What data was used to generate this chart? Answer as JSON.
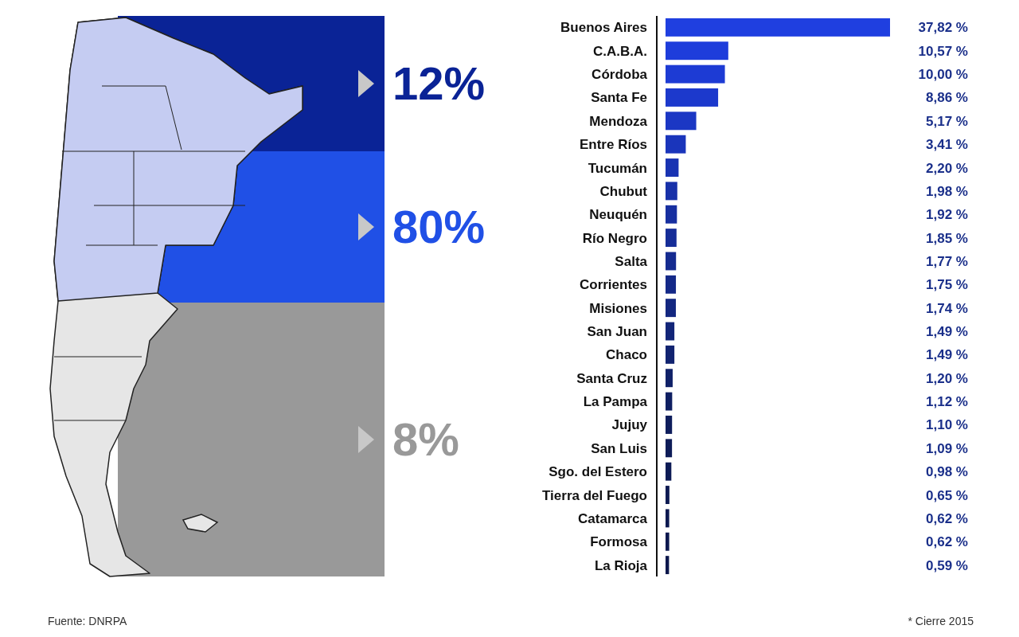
{
  "chart_data": [
    {
      "type": "other",
      "categories": [
        null,
        null,
        null
      ],
      "values": [
        12,
        80,
        8
      ],
      "colors": [
        "#0a2396",
        "#2050e6",
        "#999999"
      ],
      "value_labels": [
        "12%",
        "80%",
        "8%"
      ]
    },
    {
      "type": "bar",
      "orientation": "horizontal",
      "categories": [
        "Buenos Aires",
        "C.A.B.A.",
        "Córdoba",
        "Santa Fe",
        "Mendoza",
        "Entre Ríos",
        "Tucumán",
        "Chubut",
        "Neuquén",
        "Río Negro",
        "Salta",
        "Corrientes",
        "Misiones",
        "San Juan",
        "Chaco",
        "Santa Cruz",
        "La Pampa",
        "Jujuy",
        "San Luis",
        "Sgo. del Estero",
        "Tierra del Fuego",
        "Catamarca",
        "Formosa",
        "La Rioja"
      ],
      "values": [
        37.82,
        10.57,
        10.0,
        8.86,
        5.17,
        3.41,
        2.2,
        1.98,
        1.92,
        1.85,
        1.77,
        1.75,
        1.74,
        1.49,
        1.49,
        1.2,
        1.12,
        1.1,
        1.09,
        0.98,
        0.65,
        0.62,
        0.62,
        0.59
      ],
      "value_labels": [
        "37,82 %",
        "10,57 %",
        "10,00 %",
        "8,86 %",
        "5,17 %",
        "3,41 %",
        "2,20 %",
        "1,98 %",
        "1,92 %",
        "1,85 %",
        "1,77 %",
        "1,75 %",
        "1,74 %",
        "1,49 %",
        "1,49 %",
        "1,20 %",
        "1,12 %",
        "1,10 %",
        "1,09 %",
        "0,98 %",
        "0,65 %",
        "0,62 %",
        "0,62 %",
        "0,59 %"
      ],
      "colors": [
        "#1f3fe0",
        "#1e3ddb",
        "#1d3bd4",
        "#1c39cc",
        "#1b37c4",
        "#1a35bb",
        "#1933b2",
        "#1831a9",
        "#172fa0",
        "#162d98",
        "#152b90",
        "#142988",
        "#132780",
        "#122578",
        "#112370",
        "#102168",
        "#0f1f62",
        "#0e1d5c",
        "#0e1c58",
        "#0d1b55",
        "#0d1a52",
        "#0c1950",
        "#0c184e",
        "#0c184c"
      ],
      "annotations": [
        "Fuente: DNRPA",
        "* Cierre 2015"
      ]
    }
  ]
}
